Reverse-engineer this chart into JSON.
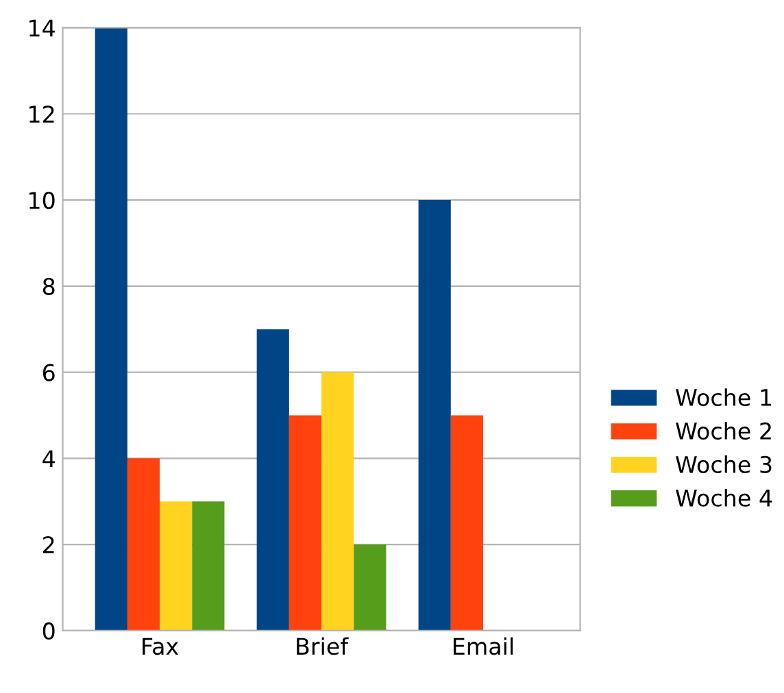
{
  "chart_data": {
    "type": "bar",
    "categories": [
      "Fax",
      "Brief",
      "Email"
    ],
    "series": [
      {
        "name": "Woche 1",
        "color": "#004586",
        "values": [
          14,
          7,
          10
        ]
      },
      {
        "name": "Woche 2",
        "color": "#ff420e",
        "values": [
          4,
          5,
          5
        ]
      },
      {
        "name": "Woche 3",
        "color": "#ffd320",
        "values": [
          3,
          6,
          null
        ]
      },
      {
        "name": "Woche 4",
        "color": "#579d1c",
        "values": [
          3,
          2,
          null
        ]
      }
    ],
    "ylim": [
      0,
      14
    ],
    "yticks": [
      0,
      2,
      4,
      6,
      8,
      10,
      12,
      14
    ],
    "grid": "y",
    "legend": "right"
  }
}
